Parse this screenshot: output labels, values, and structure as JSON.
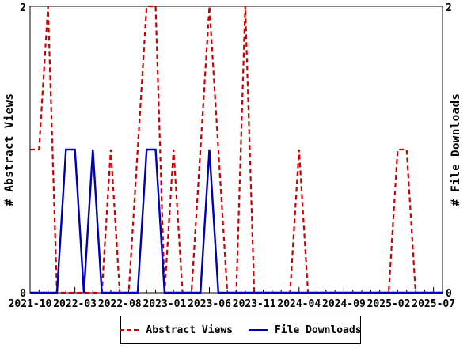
{
  "chart_data": {
    "type": "line",
    "x": [
      "2021-10",
      "2021-11",
      "2021-12",
      "2022-01",
      "2022-02",
      "2022-03",
      "2022-04",
      "2022-05",
      "2022-06",
      "2022-07",
      "2022-08",
      "2022-09",
      "2022-10",
      "2022-11",
      "2022-12",
      "2023-01",
      "2023-02",
      "2023-03",
      "2023-04",
      "2023-05",
      "2023-06",
      "2023-07",
      "2023-08",
      "2023-09",
      "2023-10",
      "2023-11",
      "2023-12",
      "2024-01",
      "2024-02",
      "2024-03",
      "2024-04",
      "2024-05",
      "2024-06",
      "2024-07",
      "2024-08",
      "2024-09",
      "2024-10",
      "2024-11",
      "2024-12",
      "2025-01",
      "2025-02",
      "2025-03",
      "2025-04",
      "2025-05",
      "2025-06",
      "2025-07"
    ],
    "series": [
      {
        "name": "Abstract Views",
        "color": "#cc0000",
        "style": "dashed",
        "axis": "left",
        "values": [
          1,
          1,
          2,
          0,
          0,
          0,
          0,
          0,
          0,
          1,
          0,
          0,
          1,
          2,
          2,
          0,
          1,
          0,
          0,
          1,
          2,
          1,
          0,
          0,
          2,
          0,
          0,
          0,
          0,
          0,
          1,
          0,
          0,
          0,
          0,
          0,
          0,
          0,
          0,
          0,
          0,
          1,
          1,
          0,
          0,
          0
        ]
      },
      {
        "name": "File Downloads",
        "color": "#0000bb",
        "style": "solid",
        "axis": "right",
        "values": [
          0,
          0,
          0,
          0,
          1,
          1,
          0,
          1,
          0,
          0,
          0,
          0,
          0,
          1,
          1,
          0,
          0,
          0,
          0,
          0,
          1,
          0,
          0,
          0,
          0,
          0,
          0,
          0,
          0,
          0,
          0,
          0,
          0,
          0,
          0,
          0,
          0,
          0,
          0,
          0,
          0,
          0,
          0,
          0,
          0,
          0
        ]
      }
    ],
    "title": "",
    "xlabel": "",
    "ylabel_left": "# Abstract Views",
    "ylabel_right": "# File Downloads",
    "ylim": [
      0,
      2
    ],
    "yticks": [
      0,
      2
    ],
    "y_tick_labels": [
      "0",
      "2"
    ],
    "x_major_tick_interval": 5,
    "x_major_tick_labels": [
      "2021-10",
      "2022-03",
      "2022-08",
      "2023-01",
      "2023-06",
      "2023-11",
      "2024-04",
      "2024-09",
      "2025-02",
      "2025-07"
    ],
    "grid": false,
    "legend_position": "bottom-center",
    "background_color": "#ffffff",
    "frame_color": "#000000"
  }
}
